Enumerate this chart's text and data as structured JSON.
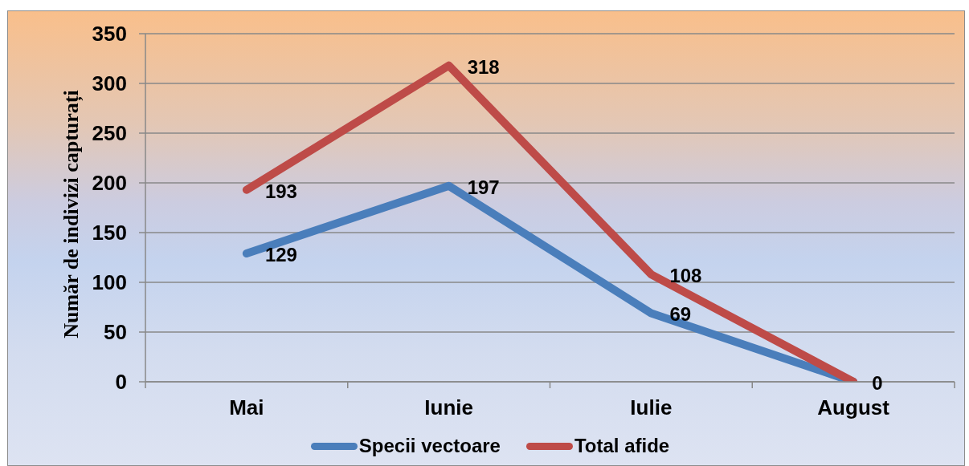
{
  "chart_data": {
    "type": "line",
    "categories": [
      "Mai",
      "Iunie",
      "Iulie",
      "August"
    ],
    "series": [
      {
        "name": "Specii vectoare",
        "color": "#4a7ebb",
        "values": [
          129,
          197,
          69,
          0
        ],
        "value_labels": [
          "129",
          "197",
          "69",
          null
        ]
      },
      {
        "name": "Total afide",
        "color": "#be4b48",
        "values": [
          193,
          318,
          108,
          0
        ],
        "value_labels": [
          "193",
          "318",
          "108",
          "0"
        ]
      }
    ],
    "ylabel": "Număr de indivizi capturați",
    "ylim": [
      0,
      350
    ],
    "yticks": [
      0,
      50,
      100,
      150,
      200,
      250,
      300,
      350
    ],
    "grid": "y",
    "legend": "bottom",
    "line_style": "solid"
  }
}
